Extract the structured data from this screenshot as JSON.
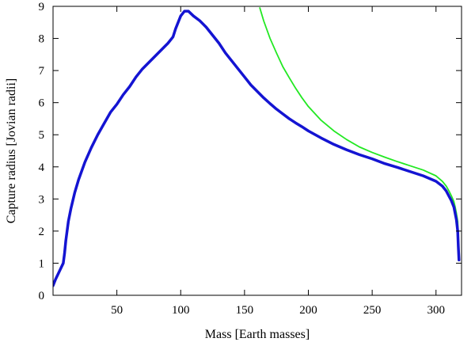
{
  "chart_data": {
    "type": "line",
    "title": "",
    "xlabel": "Mass [Earth masses]",
    "ylabel": "Capture radius [Jovian radii]",
    "xlim": [
      0,
      320
    ],
    "ylim": [
      0,
      9
    ],
    "xticks": [
      50,
      100,
      150,
      200,
      250,
      300
    ],
    "yticks": [
      0,
      1,
      2,
      3,
      4,
      5,
      6,
      7,
      8,
      9
    ],
    "grid": false,
    "legend": "none",
    "series": [
      {
        "color": "#1414d2",
        "x": [
          0,
          2,
          5,
          8,
          9,
          10,
          11,
          12,
          14,
          17,
          20,
          25,
          30,
          35,
          40,
          45,
          50,
          55,
          60,
          65,
          70,
          75,
          80,
          85,
          90,
          94,
          96,
          98,
          100,
          103,
          106,
          110,
          115,
          120,
          125,
          130,
          135,
          140,
          145,
          150,
          155,
          160,
          165,
          170,
          175,
          180,
          185,
          190,
          195,
          200,
          210,
          220,
          230,
          240,
          250,
          260,
          270,
          280,
          290,
          300,
          305,
          308,
          310,
          312,
          314,
          315,
          316,
          317,
          317.5,
          318
        ],
        "y": [
          0.3,
          0.5,
          0.75,
          1.0,
          1.3,
          1.7,
          2.0,
          2.3,
          2.7,
          3.2,
          3.6,
          4.15,
          4.6,
          5.0,
          5.35,
          5.7,
          5.95,
          6.25,
          6.5,
          6.8,
          7.05,
          7.25,
          7.45,
          7.65,
          7.85,
          8.05,
          8.3,
          8.5,
          8.7,
          8.85,
          8.85,
          8.7,
          8.55,
          8.35,
          8.1,
          7.85,
          7.55,
          7.3,
          7.05,
          6.8,
          6.55,
          6.35,
          6.15,
          5.97,
          5.8,
          5.65,
          5.5,
          5.37,
          5.25,
          5.12,
          4.9,
          4.7,
          4.53,
          4.38,
          4.25,
          4.1,
          3.98,
          3.85,
          3.72,
          3.55,
          3.4,
          3.25,
          3.1,
          2.95,
          2.75,
          2.55,
          2.35,
          2.0,
          1.5,
          1.1
        ]
      },
      {
        "color": "#22e822",
        "x": [
          162,
          165,
          170,
          175,
          180,
          185,
          190,
          195,
          200,
          210,
          220,
          230,
          240,
          250,
          260,
          270,
          280,
          290,
          300,
          305,
          308,
          310,
          312,
          314,
          315,
          316,
          317,
          317.5,
          318
        ],
        "y": [
          8.95,
          8.55,
          8.0,
          7.55,
          7.12,
          6.78,
          6.45,
          6.15,
          5.88,
          5.45,
          5.12,
          4.85,
          4.62,
          4.45,
          4.3,
          4.16,
          4.03,
          3.9,
          3.72,
          3.55,
          3.4,
          3.26,
          3.1,
          2.92,
          2.75,
          2.55,
          2.3,
          1.8,
          1.1
        ]
      }
    ]
  }
}
